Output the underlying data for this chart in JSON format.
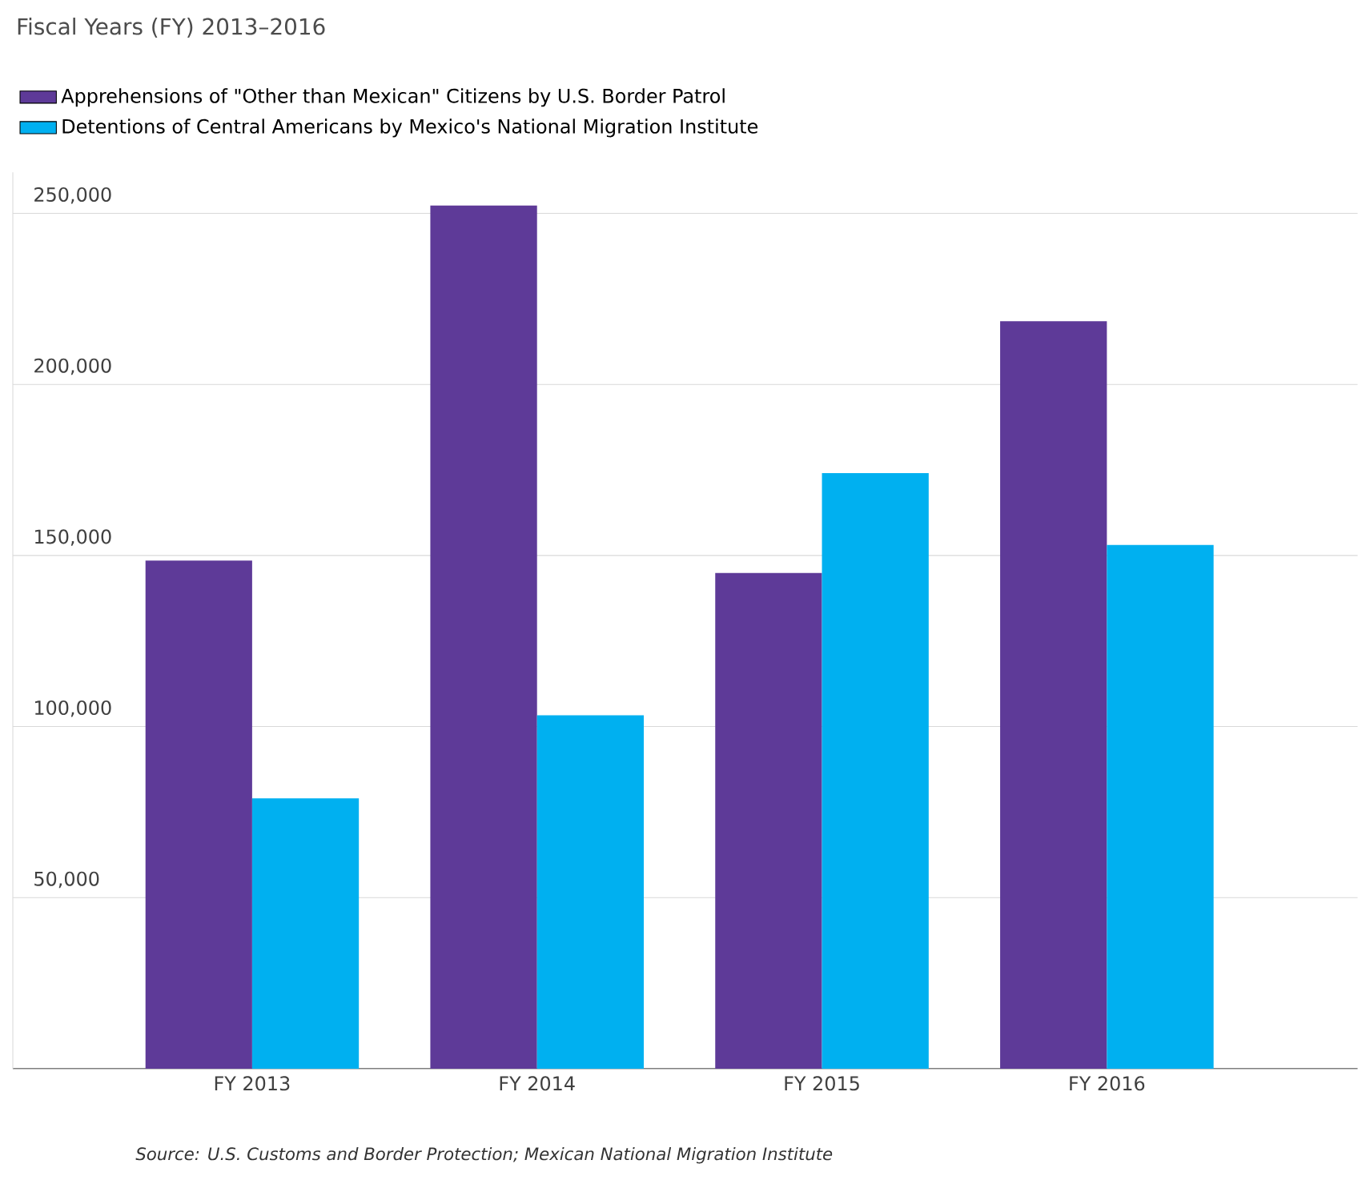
{
  "chart_data": {
    "type": "bar",
    "title": "Fiscal Years (FY) 2013–2016",
    "categories": [
      "FY 2013",
      "FY 2014",
      "FY 2015",
      "FY 2016"
    ],
    "series": [
      {
        "name": "Apprehensions of \"Other than Mexican\" Citizens by U.S. Border Patrol",
        "color": "#5e3a98",
        "values": [
          148500,
          252300,
          144900,
          218500
        ]
      },
      {
        "name": "Detentions of Central Americans by Mexico's National Migration Institute",
        "color": "#00b0f0",
        "values": [
          79000,
          103300,
          174100,
          153100
        ]
      }
    ],
    "ylim": [
      0,
      262000
    ],
    "yticks": [
      {
        "value": 50000,
        "label": "50,000"
      },
      {
        "value": 100000,
        "label": "100,000"
      },
      {
        "value": 150000,
        "label": "150,000"
      },
      {
        "value": 200000,
        "label": "200,000"
      },
      {
        "value": 250000,
        "label": "250,000"
      }
    ],
    "grid": "y",
    "legend": "top left",
    "annotations": [
      "Source: U.S. Customs and Border Protection; Mexican National Migration Institute"
    ]
  }
}
